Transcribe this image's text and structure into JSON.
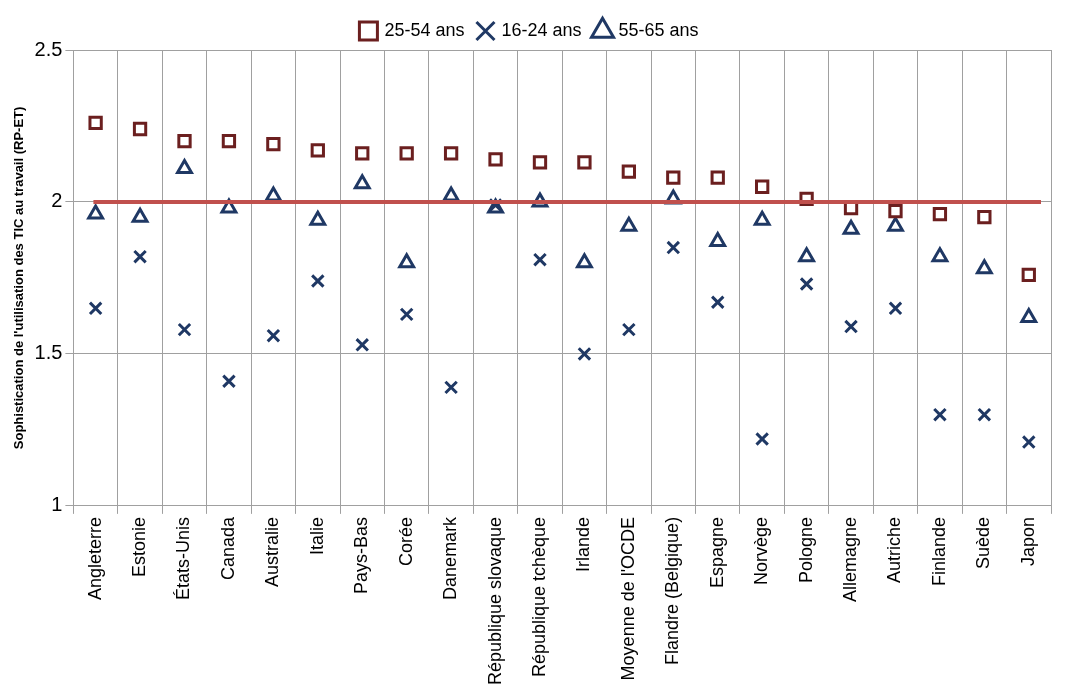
{
  "chart_data": {
    "type": "scatter",
    "ylabel": "Sophistication de l'utilisation des TIC au travail (RP-ET)",
    "categories": [
      "Angleterre",
      "Estonie",
      "États-Unis",
      "Canada",
      "Australie",
      "Italie",
      "Pays-Bas",
      "Corée",
      "Danemark",
      "République slovaque",
      "République tchèque",
      "Irlande",
      "Moyenne de l'OCDE",
      "Flandre (Belgique)",
      "Espagne",
      "Norvège",
      "Pologne",
      "Allemagne",
      "Autriche",
      "Finlande",
      "Suède",
      "Japon"
    ],
    "series": [
      {
        "name": "16-24 ans",
        "color": "#1f3864",
        "marker": "cross",
        "values": [
          1.65,
          1.82,
          1.58,
          1.41,
          1.56,
          1.74,
          1.53,
          1.63,
          1.39,
          1.99,
          1.81,
          1.5,
          1.58,
          1.85,
          1.67,
          1.22,
          1.73,
          1.59,
          1.65,
          1.3,
          1.3,
          1.21
        ]
      },
      {
        "name": "25-54 ans",
        "color": "#6b1f1f",
        "marker": "square",
        "values": [
          2.26,
          2.24,
          2.2,
          2.2,
          2.19,
          2.17,
          2.16,
          2.16,
          2.16,
          2.14,
          2.13,
          2.13,
          2.1,
          2.08,
          2.08,
          2.05,
          2.01,
          1.98,
          1.97,
          1.96,
          1.95,
          1.76
        ]
      },
      {
        "name": "55-65 ans",
        "color": "#1f3864",
        "marker": "triangle",
        "values": [
          1.96,
          1.95,
          2.11,
          1.98,
          2.02,
          1.94,
          2.06,
          1.8,
          2.02,
          1.98,
          2.0,
          1.8,
          1.92,
          2.01,
          1.87,
          1.94,
          1.82,
          1.91,
          1.92,
          1.82,
          1.78,
          1.62
        ]
      }
    ],
    "ylim": [
      1,
      2.5
    ],
    "yticks": [
      1,
      1.5,
      2,
      2.5
    ],
    "grid": true,
    "legend": "top",
    "ref_lines": [
      {
        "axis": "y",
        "value": 2,
        "color": "#c0504d"
      }
    ]
  }
}
